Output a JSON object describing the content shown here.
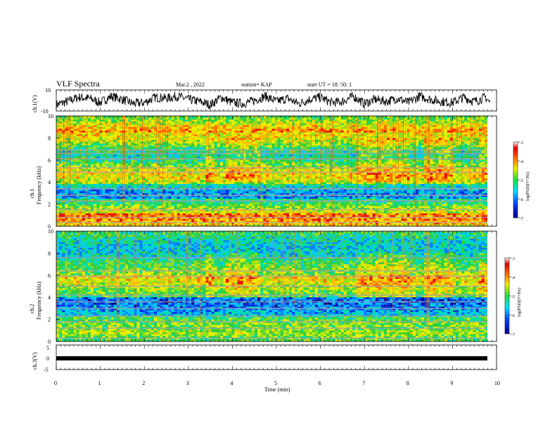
{
  "header": {
    "title": "VLF Spectra",
    "date": "Mar.2 , 2022",
    "station": "station= KAP",
    "start_time": "start UT = 18: 50: 1"
  },
  "chart_data": [
    {
      "type": "line",
      "panel": "ch1-waveform",
      "ylabel": "ch.1(V)",
      "ylim": [
        -10,
        10
      ],
      "yticks": [
        "10",
        "-10"
      ],
      "xlim": [
        0,
        10
      ],
      "series": [
        {
          "x": [
            0,
            0.25,
            0.5,
            0.75,
            1.0,
            1.25,
            1.5,
            1.75,
            2.0,
            2.25,
            2.5,
            2.75,
            3.0,
            3.25,
            3.5,
            3.75,
            4.0,
            4.25,
            4.5,
            4.75,
            5.0,
            5.25,
            5.5,
            5.75,
            6.0,
            6.25,
            6.5,
            6.75,
            7.0,
            7.25,
            7.5,
            7.75,
            8.0,
            8.25,
            8.5,
            8.75,
            9.0,
            9.25,
            9.5,
            9.75,
            9.85
          ],
          "y": [
            -4,
            -1,
            3,
            2,
            -2,
            4,
            1,
            -3,
            -2,
            3,
            2,
            4,
            1,
            -1,
            -4,
            3,
            -2,
            -3,
            0,
            4,
            -1,
            2,
            -3,
            1,
            3,
            -2,
            -1,
            4,
            -3,
            1,
            -1,
            2,
            -2,
            4,
            1,
            -1,
            -2,
            3,
            -1,
            3,
            -2
          ]
        }
      ]
    },
    {
      "type": "heatmap",
      "panel": "ch1-spectrogram",
      "ylabel": "ch.1 Frequency (kHz)",
      "ylim": [
        0,
        10
      ],
      "yticks": [
        "0",
        "2",
        "4",
        "6",
        "8",
        "10"
      ],
      "xlim": [
        0,
        10
      ],
      "colorbar": {
        "label": "log(PSD)(V²/Hz)",
        "ticks": [
          "-3",
          "-4",
          "-5",
          "-6",
          "-7"
        ],
        "range": [
          -7,
          -3
        ]
      }
    },
    {
      "type": "heatmap",
      "panel": "ch2-spectrogram",
      "ylabel": "ch.2 Frequency (kHz)",
      "ylim": [
        0,
        10
      ],
      "yticks": [
        "0",
        "2",
        "4",
        "6",
        "8",
        "10"
      ],
      "xlim": [
        0,
        10
      ],
      "colorbar": {
        "label": "log(PSD)(V²/Hz)",
        "ticks": [
          "-3",
          "-4",
          "-5",
          "-6",
          "-7"
        ],
        "range": [
          -7,
          -3
        ]
      }
    },
    {
      "type": "line",
      "panel": "ch3-waveform",
      "ylabel": "ch.3(V)",
      "ylim": [
        -5,
        5
      ],
      "yticks": [
        "5",
        "0",
        "-5"
      ],
      "xlim": [
        0,
        10
      ],
      "series": [
        {
          "x": [
            0,
            9.85
          ],
          "y": [
            0,
            0
          ]
        }
      ]
    }
  ],
  "xaxis": {
    "label": "Time (min)",
    "ticks": [
      "0",
      "1",
      "2",
      "3",
      "4",
      "5",
      "6",
      "7",
      "8",
      "9",
      "10"
    ]
  },
  "colors": {
    "frame": "#000000",
    "colorscale": [
      "#0000a0",
      "#0050ff",
      "#00d0ff",
      "#30e060",
      "#f0f000",
      "#ff8000",
      "#e00000",
      "#ffffff"
    ]
  }
}
